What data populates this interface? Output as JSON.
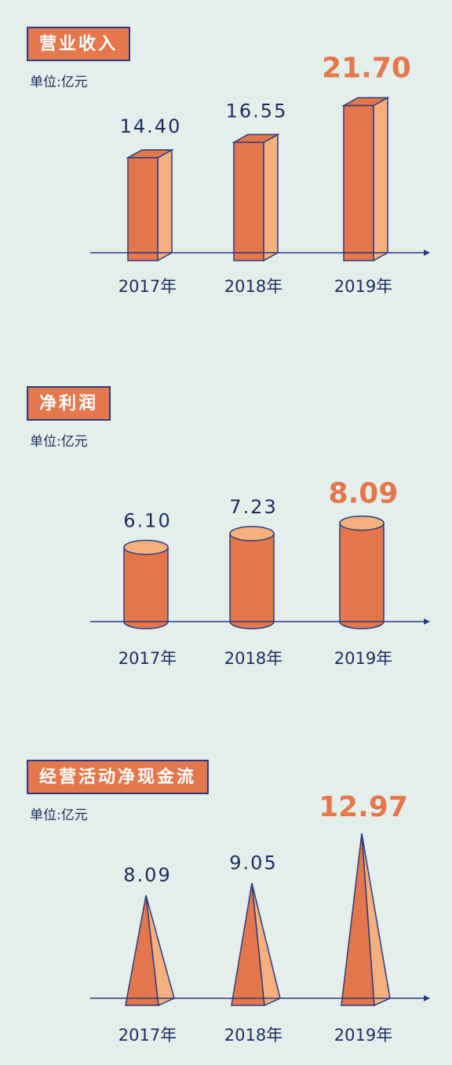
{
  "colors": {
    "front": "#e5774c",
    "side": "#f6b07e",
    "outline": "#2a3a7c",
    "text": "#1f2a5e",
    "background": "#e4efec"
  },
  "chart_data": [
    {
      "type": "bar",
      "shape": "3d-box",
      "title": "营业收入",
      "unit_label": "单位:亿元",
      "categories": [
        "2017年",
        "2018年",
        "2019年"
      ],
      "value_labels": [
        "14.40",
        "16.55",
        "21.70"
      ],
      "values": [
        14.4,
        16.55,
        21.7
      ],
      "highlight_index": 2
    },
    {
      "type": "bar",
      "shape": "cylinder",
      "title": "净利润",
      "unit_label": "单位:亿元",
      "categories": [
        "2017年",
        "2018年",
        "2019年"
      ],
      "value_labels": [
        "6.10",
        "7.23",
        "8.09"
      ],
      "values": [
        6.1,
        7.23,
        8.09
      ],
      "highlight_index": 2
    },
    {
      "type": "bar",
      "shape": "pyramid",
      "title": "经营活动净现金流",
      "unit_label": "单位:亿元",
      "categories": [
        "2017年",
        "2018年",
        "2019年"
      ],
      "value_labels": [
        "8.09",
        "9.05",
        "12.97"
      ],
      "values": [
        8.09,
        9.05,
        12.97
      ],
      "highlight_index": 2
    }
  ]
}
